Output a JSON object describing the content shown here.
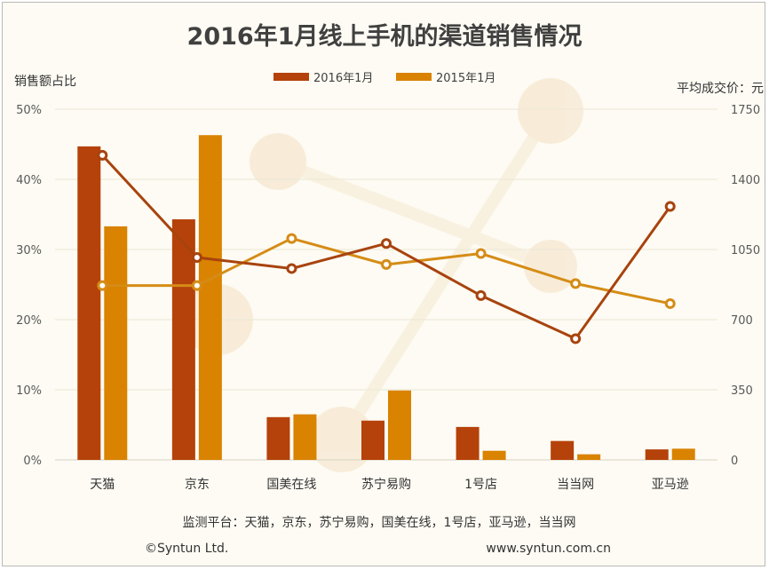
{
  "chart_data": {
    "type": "bar",
    "title": "2016年1月线上手机的渠道销售情况",
    "ylabel": "销售额占比",
    "y2label": "平均成交价：元",
    "ylim": [
      0,
      50
    ],
    "y2lim": [
      0,
      1750
    ],
    "yticks": [
      "0%",
      "10%",
      "20%",
      "30%",
      "40%",
      "50%"
    ],
    "y2ticks": [
      "0",
      "350",
      "700",
      "1050",
      "1400",
      "1750"
    ],
    "categories": [
      "天猫",
      "京东",
      "国美在线",
      "苏宁易购",
      "1号店",
      "当当网",
      "亚马逊"
    ],
    "series": [
      {
        "name": "2016年1月",
        "kind": "bar",
        "axis": "left",
        "color": "#b5420a",
        "values": [
          44.7,
          34.3,
          6.1,
          5.6,
          4.7,
          2.7,
          1.5
        ]
      },
      {
        "name": "2015年1月",
        "kind": "bar",
        "axis": "left",
        "color": "#d98300",
        "values": [
          33.3,
          46.3,
          6.5,
          9.9,
          1.3,
          0.8,
          1.6
        ]
      },
      {
        "name": "2016年1月",
        "kind": "line",
        "axis": "right",
        "color": "#a8430e",
        "values": [
          1520,
          1010,
          955,
          1080,
          820,
          605,
          1265
        ]
      },
      {
        "name": "2015年1月",
        "kind": "line",
        "axis": "right",
        "color": "#d58c16",
        "values": [
          870,
          870,
          1105,
          975,
          1030,
          880,
          780
        ]
      }
    ],
    "legend": {
      "placement": "top-center",
      "entries": [
        "2016年1月",
        "2015年1月"
      ]
    },
    "grid": true
  },
  "footer": {
    "platforms": "监测平台：天猫，京东，苏宁易购，国美在线，1号店，亚马逊，当当网",
    "copyright": "©Syntun Ltd.",
    "website": "www.syntun.com.cn"
  }
}
